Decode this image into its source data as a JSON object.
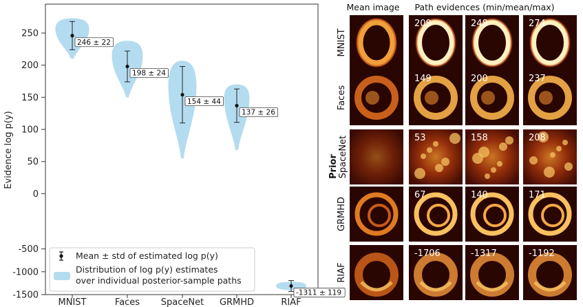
{
  "chart_data": {
    "type": "violin",
    "ylabel": "Evidence log p(y)",
    "ylim_upper": [
      -20,
      295
    ],
    "ylim_lower": [
      -1500,
      -400
    ],
    "y_ticks": [
      "250",
      "200",
      "150",
      "100",
      "50",
      "0",
      "-500",
      "-1000",
      "-1500"
    ],
    "y_tick_values": [
      250,
      200,
      150,
      100,
      50,
      0,
      -500,
      -1000,
      -1500
    ],
    "categories": [
      "MNIST",
      "Faces",
      "SpaceNet",
      "GRMHD",
      "RIAF"
    ],
    "means": [
      246,
      198,
      154,
      137,
      -1311
    ],
    "stds": [
      22,
      24,
      44,
      26,
      119
    ],
    "annotations": [
      "246 ± 22",
      "198 ± 24",
      "154 ± 44",
      "137 ± 26",
      "-1311 ± 119"
    ],
    "violin_ranges": [
      [
        210,
        273
      ],
      [
        150,
        238
      ],
      [
        55,
        207
      ],
      [
        68,
        170
      ],
      [
        -1400,
        -1220
      ]
    ],
    "legend": {
      "mean_label": "Mean ± std of estimated log p(y)",
      "dist_label_line1": "Distribution of log p(y) estimates",
      "dist_label_line2": "over individual posterior-sample paths"
    },
    "violin_color": "#b4dcf0"
  },
  "grid": {
    "header_mean": "Mean image",
    "header_paths": "Path evidences (min/mean/max)",
    "prior_label": "Prior",
    "rows": [
      {
        "name": "MNIST",
        "values": [
          "209",
          "248",
          "274"
        ]
      },
      {
        "name": "Faces",
        "values": [
          "149",
          "200",
          "237"
        ]
      },
      {
        "name": "SpaceNet",
        "values": [
          "53",
          "158",
          "208"
        ]
      },
      {
        "name": "GRMHD",
        "values": [
          "67",
          "140",
          "171"
        ]
      },
      {
        "name": "RIAF",
        "values": [
          "-1706",
          "-1317",
          "-1192"
        ]
      }
    ]
  }
}
